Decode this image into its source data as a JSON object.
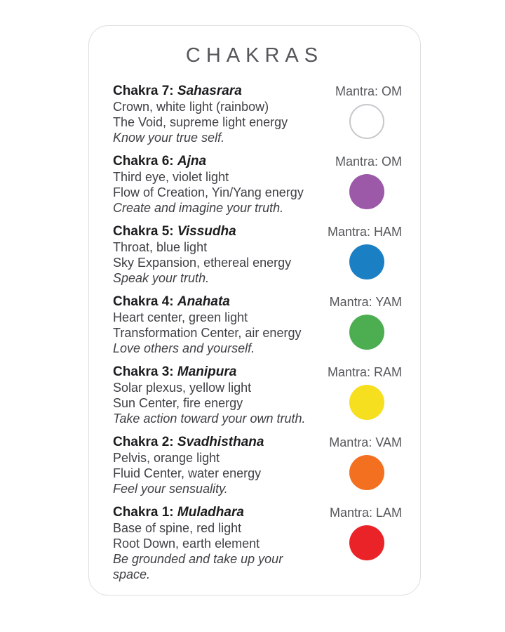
{
  "page": {
    "title": "CHAKRAS"
  },
  "chakras": [
    {
      "label": "Chakra 7:",
      "name": "Sahasrara",
      "lines": [
        "Crown, white light (rainbow)",
        "The Void, supreme light energy"
      ],
      "affirmation": "Know your true self.",
      "mantra": "Mantra: OM",
      "circle_color": "#ffffff",
      "circle_border": "#c6c8cb"
    },
    {
      "label": "Chakra 6:",
      "name": "Ajna",
      "lines": [
        "Third eye, violet light",
        "Flow of Creation, Yin/Yang energy"
      ],
      "affirmation": "Create and imagine your truth.",
      "mantra": "Mantra: OM",
      "circle_color": "#9c59a8"
    },
    {
      "label": "Chakra 5:",
      "name": "Vissudha",
      "lines": [
        "Throat, blue light",
        "Sky Expansion, ethereal energy"
      ],
      "affirmation": "Speak your truth.",
      "mantra": "Mantra: HAM",
      "circle_color": "#1b7fc4"
    },
    {
      "label": "Chakra 4:",
      "name": "Anahata",
      "lines": [
        "Heart center, green light",
        "Transformation Center, air energy"
      ],
      "affirmation": "Love others and yourself.",
      "mantra": "Mantra: YAM",
      "circle_color": "#4cae50"
    },
    {
      "label": "Chakra 3:",
      "name": "Manipura",
      "lines": [
        "Solar plexus, yellow light",
        "Sun Center, fire energy"
      ],
      "affirmation": "Take action toward your own truth.",
      "mantra": "Mantra: RAM",
      "circle_color": "#f5df1e"
    },
    {
      "label": "Chakra 2:",
      "name": "Svadhisthana",
      "lines": [
        "Pelvis, orange light",
        "Fluid Center, water energy"
      ],
      "affirmation": "Feel your sensuality.",
      "mantra": "Mantra: VAM",
      "circle_color": "#f37021"
    },
    {
      "label": "Chakra 1:",
      "name": "Muladhara",
      "lines": [
        "Base of spine, red light",
        "Root Down, earth element"
      ],
      "affirmation": "Be grounded and take up your space.",
      "mantra": "Mantra: LAM",
      "circle_color": "#e92328"
    }
  ]
}
